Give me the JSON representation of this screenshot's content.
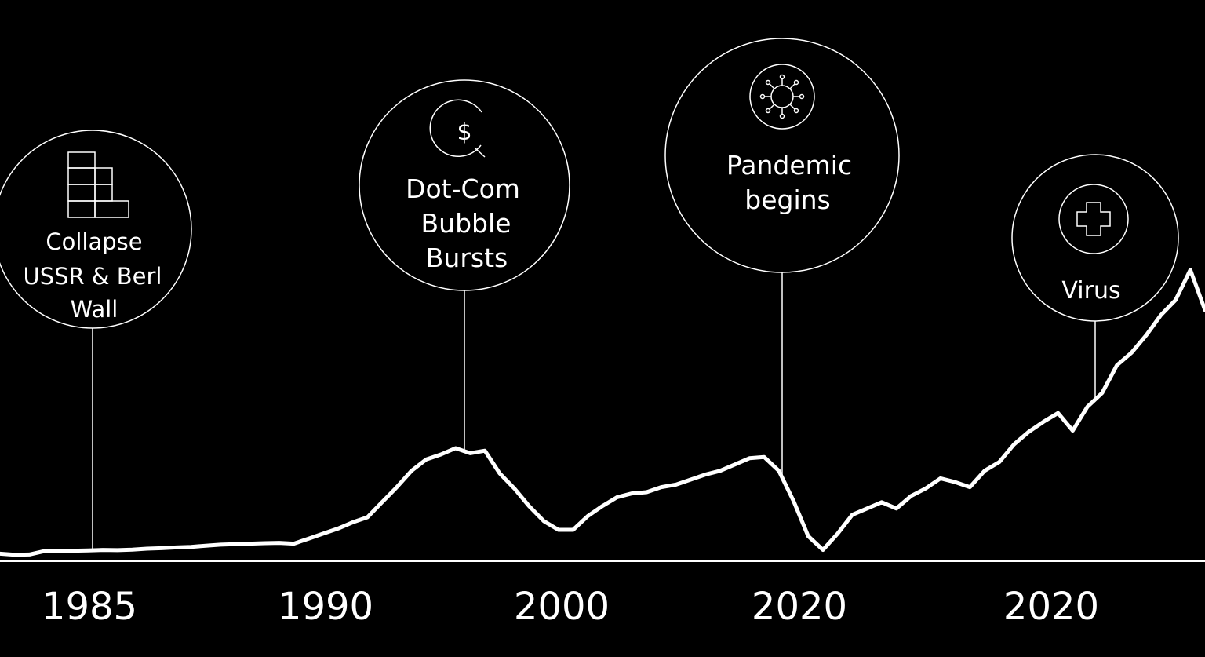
{
  "chart_data": {
    "type": "line",
    "title": "",
    "xlabel": "",
    "ylabel": "",
    "grid": false,
    "legend": "none",
    "x_tick_labels": [
      "1985",
      "1990",
      "2000",
      "2020",
      "2020"
    ],
    "series": [
      {
        "values": [
          0.3,
          0.26,
          0.27,
          0.4,
          0.41,
          0.42,
          0.43,
          0.45,
          0.44,
          0.46,
          0.5,
          0.52,
          0.55,
          0.57,
          0.62,
          0.66,
          0.68,
          0.7,
          0.72,
          0.73,
          0.7,
          0.9,
          1.1,
          1.3,
          1.55,
          1.75,
          2.35,
          2.95,
          3.6,
          4.05,
          4.25,
          4.5,
          4.3,
          4.4,
          3.5,
          2.9,
          2.2,
          1.6,
          1.25,
          1.25,
          1.8,
          2.2,
          2.55,
          2.7,
          2.75,
          2.95,
          3.05,
          3.25,
          3.45,
          3.6,
          3.85,
          4.1,
          4.15,
          3.6,
          2.4,
          1.0,
          0.45,
          1.1,
          1.85,
          2.1,
          2.35,
          2.1,
          2.6,
          2.9,
          3.3,
          3.15,
          2.95,
          3.6,
          3.95,
          4.65,
          5.15,
          5.55,
          5.9,
          5.2,
          6.15,
          6.7,
          7.8,
          8.3,
          9.0,
          9.8,
          10.4,
          11.6,
          10.0
        ]
      }
    ],
    "annotations": [
      {
        "label_lines": [
          "Collapse",
          "USSR & Berl",
          "Wall"
        ],
        "icon": "brick-wall-icon"
      },
      {
        "label_lines": [
          "Dot-Com",
          "Bubble",
          "Bursts"
        ],
        "icon": "dollar-coin-icon"
      },
      {
        "label_lines": [
          "Pandemic",
          "begins"
        ],
        "icon": "virus-icon"
      },
      {
        "label_lines": [
          "Virus"
        ],
        "icon": "medical-cross-icon"
      }
    ]
  }
}
